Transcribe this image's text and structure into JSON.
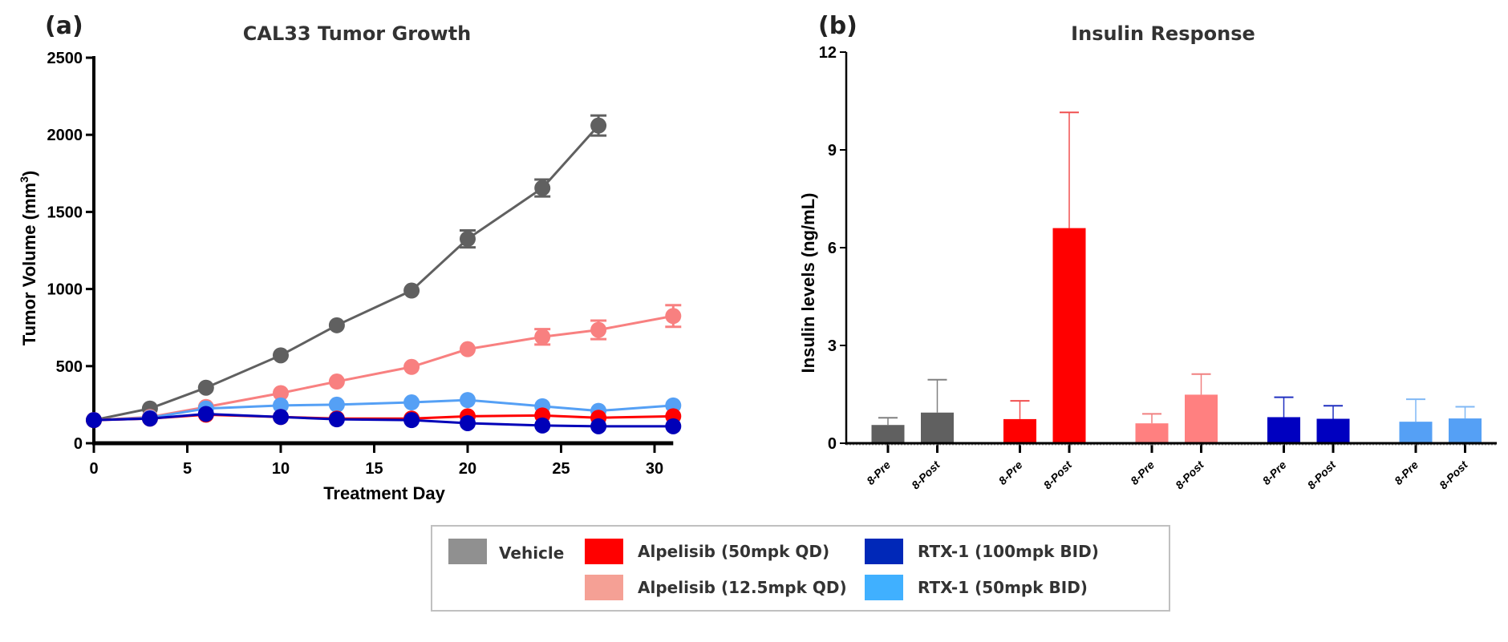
{
  "chart_data": [
    {
      "type": "line",
      "panel_label": "(a)",
      "title": "CAL33 Tumor Growth",
      "xlabel": "Treatment Day",
      "ylabel": "Tumor Volume (mm",
      "ylabel_superscript": "3",
      "ylabel_close": ")",
      "xlim": [
        0,
        31
      ],
      "ylim": [
        0,
        2500
      ],
      "xticks": [
        0,
        5,
        10,
        15,
        20,
        25,
        30
      ],
      "yticks": [
        0,
        500,
        1000,
        1500,
        2000,
        2500
      ],
      "grid": false,
      "series": [
        {
          "name": "Vehicle",
          "color": "#606060",
          "x": [
            0,
            3,
            6,
            10,
            13,
            17,
            20,
            24,
            27
          ],
          "y": [
            150,
            225,
            360,
            570,
            765,
            990,
            1325,
            1655,
            2060
          ],
          "err": [
            0,
            0,
            0,
            0,
            0,
            0,
            55,
            55,
            65
          ]
        },
        {
          "name": "Alpelisib (12.5mpk QD)",
          "color": "#f88080",
          "x": [
            0,
            3,
            6,
            10,
            13,
            17,
            20,
            24,
            27,
            31
          ],
          "y": [
            150,
            170,
            235,
            325,
            400,
            495,
            610,
            690,
            735,
            825
          ],
          "err": [
            0,
            0,
            0,
            0,
            0,
            0,
            0,
            50,
            60,
            70
          ]
        },
        {
          "name": "RTX-1 (50mpk BID)",
          "color": "#55a0f5",
          "x": [
            0,
            3,
            6,
            10,
            13,
            17,
            20,
            24,
            27,
            31
          ],
          "y": [
            150,
            165,
            225,
            245,
            250,
            265,
            280,
            240,
            210,
            245
          ],
          "err": [
            0,
            0,
            0,
            0,
            0,
            0,
            0,
            0,
            0,
            0
          ]
        },
        {
          "name": "Alpelisib (50mpk QD)",
          "color": "#ff0000",
          "x": [
            0,
            3,
            6,
            10,
            13,
            17,
            20,
            24,
            27,
            31
          ],
          "y": [
            150,
            160,
            185,
            170,
            160,
            160,
            175,
            180,
            165,
            175
          ],
          "err": [
            0,
            0,
            0,
            0,
            0,
            0,
            0,
            0,
            0,
            0
          ]
        },
        {
          "name": "RTX-1 (100mpk BID)",
          "color": "#0000b8",
          "x": [
            0,
            3,
            6,
            10,
            13,
            17,
            20,
            24,
            27,
            31
          ],
          "y": [
            150,
            160,
            190,
            170,
            155,
            150,
            130,
            115,
            110,
            110
          ],
          "err": [
            0,
            0,
            0,
            0,
            0,
            0,
            0,
            0,
            0,
            0
          ]
        }
      ]
    },
    {
      "type": "bar",
      "panel_label": "(b)",
      "title": "Insulin Response",
      "xlabel": "",
      "ylabel": "Insulin levels (ng/mL)",
      "ylim": [
        0,
        12
      ],
      "yticks": [
        0,
        3,
        6,
        9,
        12
      ],
      "grid": false,
      "groups": [
        {
          "name": "Vehicle",
          "color": "#606060",
          "err_color": "#808080",
          "bars": [
            {
              "label": "8-Pre",
              "value": 0.56,
              "err_upper": 0.78
            },
            {
              "label": "8-Post",
              "value": 0.94,
              "err_upper": 1.95
            }
          ]
        },
        {
          "name": "Alpelisib (50mpk QD)",
          "color": "#ff0000",
          "err_color": "#f05050",
          "bars": [
            {
              "label": "8-Pre",
              "value": 0.74,
              "err_upper": 1.3
            },
            {
              "label": "8-Post",
              "value": 6.6,
              "err_upper": 10.15
            }
          ]
        },
        {
          "name": "Alpelisib (12.5mpk QD)",
          "color": "#ff8080",
          "err_color": "#f08080",
          "bars": [
            {
              "label": "8-Pre",
              "value": 0.61,
              "err_upper": 0.9
            },
            {
              "label": "8-Post",
              "value": 1.49,
              "err_upper": 2.12
            }
          ]
        },
        {
          "name": "RTX-1 (100mpk BID)",
          "color": "#0000c0",
          "err_color": "#2030c0",
          "bars": [
            {
              "label": "8-Pre",
              "value": 0.8,
              "err_upper": 1.41
            },
            {
              "label": "8-Post",
              "value": 0.75,
              "err_upper": 1.15
            }
          ]
        },
        {
          "name": "RTX-1 (50mpk BID)",
          "color": "#55a0f5",
          "err_color": "#80b8f5",
          "bars": [
            {
              "label": "8-Pre",
              "value": 0.66,
              "err_upper": 1.35
            },
            {
              "label": "8-Post",
              "value": 0.76,
              "err_upper": 1.12
            }
          ]
        }
      ]
    }
  ],
  "legend": {
    "items": [
      {
        "label": "Vehicle",
        "color": "#909090"
      },
      {
        "label": "Alpelisib (50mpk QD)",
        "color": "#ff0000"
      },
      {
        "label": "Alpelisib (12.5mpk QD)",
        "color": "#f5a095"
      },
      {
        "label": "RTX-1 (100mpk BID)",
        "color": "#0028b8"
      },
      {
        "label": "RTX-1 (50mpk BID)",
        "color": "#40b0ff"
      }
    ]
  }
}
